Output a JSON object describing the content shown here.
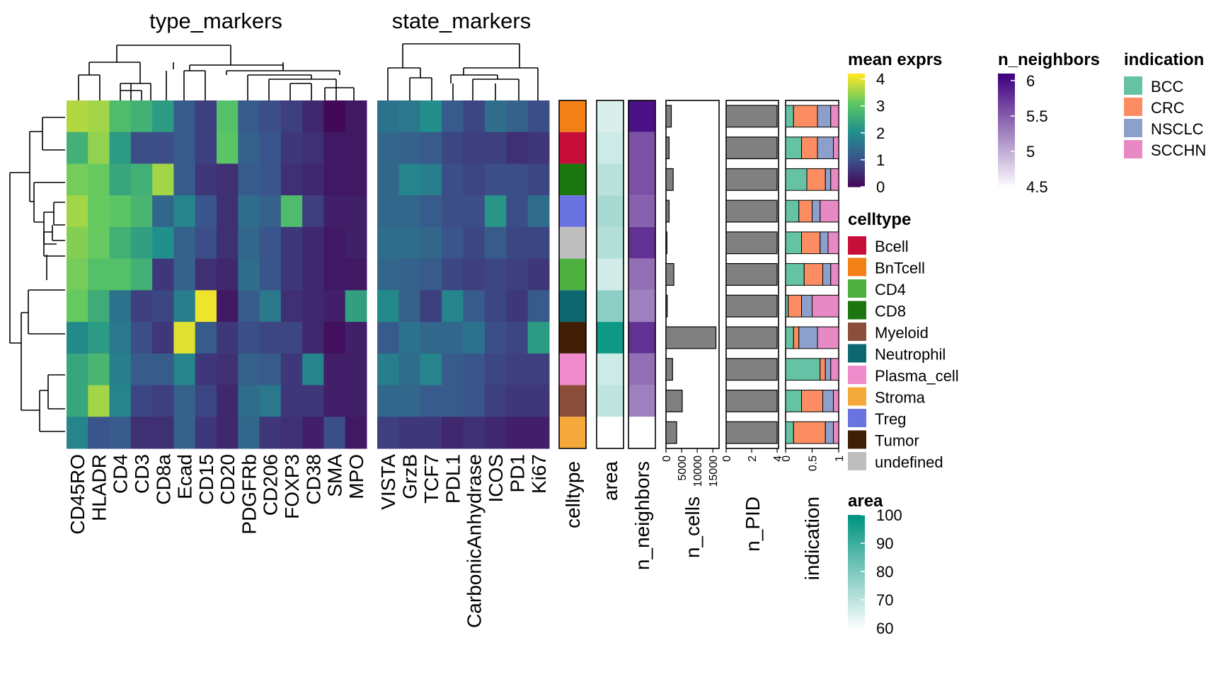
{
  "chart_data": {
    "type": "heatmap",
    "row_groups": [
      {
        "title": "type_markers",
        "columns": [
          "CD45RO",
          "HLADR",
          "CD4",
          "CD3",
          "CD8a",
          "Ecad",
          "CD15",
          "CD20",
          "PDGFRb",
          "CD206",
          "FOXP3",
          "CD38",
          "SMA",
          "MPO"
        ]
      },
      {
        "title": "state_markers",
        "columns": [
          "VISTA",
          "GrzB",
          "TCF7",
          "PDL1",
          "CarbonicAnhydrase",
          "ICOS",
          "PD1",
          "Ki67"
        ]
      }
    ],
    "rows": [
      "BnTcell",
      "Bcell",
      "CD8",
      "Treg",
      "undefined",
      "CD4",
      "Neutrophil",
      "Tumor",
      "Plasma_cell",
      "Myeloid",
      "Stroma"
    ],
    "type_values": [
      [
        3.7,
        3.6,
        2.9,
        2.7,
        2.3,
        1.2,
        0.8,
        3.0,
        1.2,
        1.0,
        0.8,
        0.5,
        0.1,
        0.3
      ],
      [
        2.7,
        3.5,
        2.3,
        1.0,
        1.0,
        1.2,
        0.8,
        3.1,
        1.3,
        1.1,
        0.7,
        0.6,
        0.3,
        0.3
      ],
      [
        3.3,
        3.2,
        2.5,
        2.7,
        3.6,
        1.2,
        0.7,
        0.6,
        1.2,
        1.1,
        0.6,
        0.5,
        0.3,
        0.3
      ],
      [
        3.6,
        3.2,
        3.1,
        2.8,
        1.4,
        1.9,
        1.1,
        0.6,
        1.5,
        1.3,
        2.9,
        0.8,
        0.4,
        0.4
      ],
      [
        3.4,
        3.2,
        2.7,
        2.4,
        2.1,
        1.3,
        1.0,
        0.6,
        1.4,
        1.1,
        0.7,
        0.5,
        0.3,
        0.4
      ],
      [
        3.3,
        3.0,
        3.0,
        2.7,
        0.7,
        1.3,
        0.6,
        0.5,
        1.5,
        1.1,
        0.7,
        0.5,
        0.3,
        0.3
      ],
      [
        3.2,
        2.6,
        1.6,
        0.8,
        0.9,
        1.8,
        4.1,
        0.3,
        1.2,
        1.7,
        0.6,
        0.5,
        0.4,
        2.4
      ],
      [
        2.0,
        2.3,
        1.7,
        1.0,
        0.7,
        4.0,
        1.2,
        0.7,
        1.0,
        0.9,
        0.9,
        0.5,
        0.2,
        0.4
      ],
      [
        2.5,
        2.8,
        1.8,
        1.2,
        1.2,
        1.9,
        0.7,
        0.6,
        1.3,
        1.2,
        0.7,
        1.9,
        0.4,
        0.4
      ],
      [
        2.5,
        3.6,
        1.9,
        0.9,
        0.8,
        1.3,
        0.9,
        0.5,
        1.5,
        1.7,
        0.7,
        0.7,
        0.4,
        0.4
      ],
      [
        1.9,
        1.1,
        1.2,
        0.6,
        0.6,
        1.3,
        0.7,
        0.5,
        1.4,
        0.7,
        0.6,
        0.4,
        1.0,
        0.3
      ]
    ],
    "state_values": [
      [
        1.6,
        1.7,
        2.1,
        1.2,
        0.9,
        1.5,
        1.3,
        1.0
      ],
      [
        1.4,
        1.3,
        1.2,
        0.9,
        0.8,
        0.8,
        0.6,
        0.7
      ],
      [
        1.4,
        1.9,
        1.8,
        1.0,
        0.9,
        1.0,
        1.0,
        0.9
      ],
      [
        1.4,
        1.4,
        1.2,
        1.0,
        1.0,
        2.2,
        1.0,
        1.5
      ],
      [
        1.5,
        1.5,
        1.4,
        1.1,
        0.9,
        1.2,
        0.9,
        0.9
      ],
      [
        1.4,
        1.3,
        1.2,
        0.9,
        0.8,
        0.9,
        0.8,
        0.7
      ],
      [
        2.0,
        1.3,
        0.8,
        1.9,
        1.2,
        0.9,
        0.7,
        1.2
      ],
      [
        1.2,
        1.6,
        1.4,
        1.4,
        1.6,
        1.0,
        0.9,
        2.3
      ],
      [
        1.8,
        1.5,
        1.9,
        1.2,
        1.1,
        0.9,
        0.8,
        0.8
      ],
      [
        1.4,
        1.4,
        1.2,
        1.2,
        1.1,
        0.8,
        0.7,
        0.7
      ],
      [
        0.8,
        0.7,
        0.7,
        0.5,
        0.6,
        0.5,
        0.4,
        0.4
      ]
    ],
    "celltype_colors": {
      "Bcell": "#C70E3A",
      "BnTcell": "#F28017",
      "CD4": "#4DB03F",
      "CD8": "#1C760F",
      "Myeloid": "#8B4E3A",
      "Neutrophil": "#0C6770",
      "Plasma_cell": "#F08BCC",
      "Stroma": "#F5A93A",
      "Treg": "#6A73E0",
      "Tumor": "#401F06",
      "undefined": "#BEBEBE"
    },
    "area": [
      66,
      68,
      71,
      74,
      72,
      67,
      78,
      98,
      68,
      70,
      60
    ],
    "n_neighbors": [
      6.0,
      5.6,
      5.6,
      5.5,
      5.8,
      5.4,
      5.3,
      5.8,
      5.4,
      5.3,
      4.5
    ],
    "n_cells": [
      1700,
      1000,
      2300,
      1000,
      300,
      2500,
      400,
      16000,
      2100,
      5200,
      3400
    ],
    "n_PID": [
      4,
      4,
      4,
      4,
      4,
      4,
      4,
      4,
      4,
      4,
      4
    ],
    "indication_props": [
      [
        0.15,
        0.45,
        0.25,
        0.15
      ],
      [
        0.3,
        0.3,
        0.3,
        0.1
      ],
      [
        0.4,
        0.35,
        0.1,
        0.15
      ],
      [
        0.25,
        0.25,
        0.15,
        0.35
      ],
      [
        0.3,
        0.35,
        0.15,
        0.2
      ],
      [
        0.35,
        0.35,
        0.15,
        0.15
      ],
      [
        0.05,
        0.25,
        0.2,
        0.5
      ],
      [
        0.15,
        0.1,
        0.35,
        0.4
      ],
      [
        0.65,
        0.1,
        0.1,
        0.15
      ],
      [
        0.3,
        0.4,
        0.2,
        0.1
      ],
      [
        0.15,
        0.6,
        0.15,
        0.1
      ]
    ],
    "indication_categories": [
      "BCC",
      "CRC",
      "NSCLC",
      "SCCHN"
    ],
    "indication_colors": {
      "BCC": "#66C2A5",
      "CRC": "#FC8D62",
      "NSCLC": "#8DA0CB",
      "SCCHN": "#E78AC3"
    },
    "annotation_labels": [
      "celltype",
      "area",
      "n_neighbors",
      "n_cells",
      "n_PID",
      "indication"
    ],
    "n_cells_ticks": [
      "0",
      "5000",
      "10000",
      "15000"
    ],
    "n_cells_range": [
      0,
      17000
    ],
    "n_PID_ticks": [
      "0",
      "2",
      "4"
    ],
    "n_PID_range": [
      0,
      4
    ],
    "indication_ticks": [
      "0",
      "0.5",
      "1"
    ],
    "legends": {
      "mean_exprs": {
        "title": "mean exprs",
        "ticks": [
          "4",
          "3",
          "2",
          "1",
          "0"
        ],
        "range": [
          0,
          4.2
        ],
        "colors": [
          "#440154",
          "#3B528B",
          "#21908C",
          "#5DC863",
          "#FDE725"
        ]
      },
      "n_neighbors": {
        "title": "n_neighbors",
        "ticks": [
          "6",
          "5.5",
          "5",
          "4.5"
        ],
        "range": [
          4.5,
          6.1
        ],
        "colors": [
          "#FFFFFF",
          "#3F007D"
        ]
      },
      "indication": {
        "title": "indication"
      },
      "celltype": {
        "title": "celltype",
        "labels": [
          "Bcell",
          "BnTcell",
          "CD4",
          "CD8",
          "Myeloid",
          "Neutrophil",
          "Plasma_cell",
          "Stroma",
          "Treg",
          "Tumor",
          "undefined"
        ]
      },
      "area": {
        "title": "area",
        "ticks": [
          "100",
          "90",
          "80",
          "70",
          "60"
        ],
        "range": [
          60,
          100
        ],
        "colors": [
          "#FFFFFF",
          "#009480"
        ]
      }
    }
  }
}
